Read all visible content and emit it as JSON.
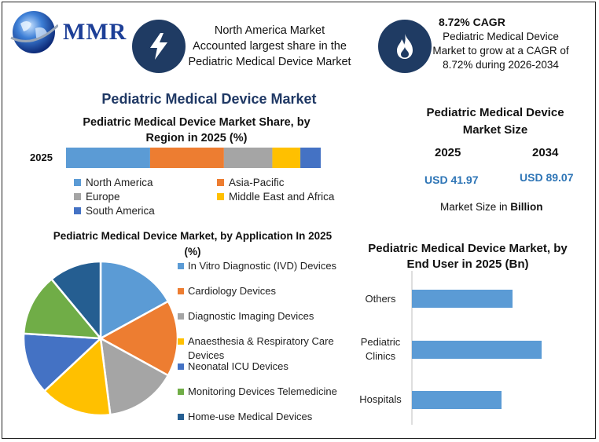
{
  "header": {
    "logo_text": "MMR",
    "box1": "North America Market Accounted largest share in the Pediatric Medical Device Market",
    "cagr_title": "8.72% CAGR",
    "cagr_desc": "Pediatric Medical Device Market to grow at a CAGR of 8.72% during 2026-2034"
  },
  "main_title": "Pediatric Medical Device Market",
  "market_size": {
    "title": "Pediatric Medical Device Market Size",
    "year1": "2025",
    "year2": "2034",
    "value1": "USD 41.97",
    "value2": "USD 89.07",
    "note_prefix": "Market Size in ",
    "note_bold": "Billion"
  },
  "chart_data": [
    {
      "type": "bar",
      "orientation": "horizontal-stacked",
      "title": "Pediatric Medical Device Market Share, by Region in 2025 (%)",
      "categories": [
        "2025"
      ],
      "series": [
        {
          "name": "North America",
          "values": [
            33
          ],
          "color": "#5b9bd5"
        },
        {
          "name": "Asia-Pacific",
          "values": [
            29
          ],
          "color": "#ed7d31"
        },
        {
          "name": "Europe",
          "values": [
            19
          ],
          "color": "#a5a5a5"
        },
        {
          "name": "Middle East and Africa",
          "values": [
            11
          ],
          "color": "#ffc000"
        },
        {
          "name": "South America",
          "values": [
            8
          ],
          "color": "#4472c4"
        }
      ]
    },
    {
      "type": "pie",
      "title": "Pediatric Medical Device Market, by Application In 2025 (%)",
      "slices": [
        {
          "name": "In Vitro Diagnostic (IVD) Devices",
          "value": 17,
          "color": "#5b9bd5"
        },
        {
          "name": "Cardiology Devices",
          "value": 16,
          "color": "#ed7d31"
        },
        {
          "name": "Diagnostic Imaging Devices",
          "value": 15,
          "color": "#a5a5a5"
        },
        {
          "name": "Anaesthesia & Respiratory Care Devices",
          "value": 15,
          "color": "#ffc000"
        },
        {
          "name": "Neonatal ICU Devices",
          "value": 13,
          "color": "#4472c4"
        },
        {
          "name": "Monitoring Devices Telemedicine",
          "value": 13,
          "color": "#70ad47"
        },
        {
          "name": "Home-use Medical Devices",
          "value": 11,
          "color": "#255e91"
        }
      ]
    },
    {
      "type": "bar",
      "orientation": "horizontal",
      "title": "Pediatric Medical Device Market, by End User in 2025 (Bn)",
      "categories": [
        "Others",
        "Pediatric Clinics",
        "Hospitals"
      ],
      "values": [
        12.8,
        16.5,
        11.4
      ],
      "color": "#5b9bd5"
    }
  ]
}
